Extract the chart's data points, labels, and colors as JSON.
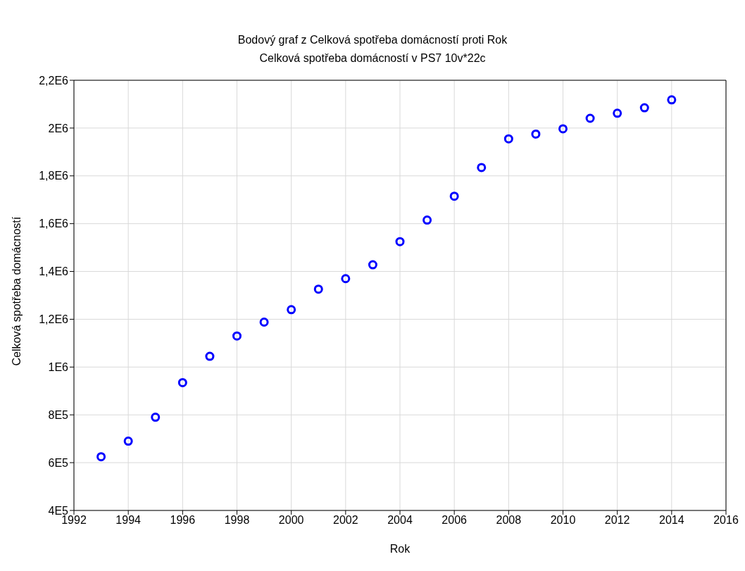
{
  "chart_data": {
    "type": "scatter",
    "title": "Bodový graf z Celková spotřeba domácností proti Rok",
    "subtitle": "Celková spotřeba domácností v PS7 10v*22c",
    "xlabel": "Rok",
    "ylabel": "Celková spotřeba domácností",
    "x": [
      1993,
      1994,
      1995,
      1996,
      1997,
      1998,
      1999,
      2000,
      2001,
      2002,
      2003,
      2004,
      2005,
      2006,
      2007,
      2008,
      2009,
      2010,
      2011,
      2012,
      2013,
      2014
    ],
    "series": [
      {
        "color": "#0000ff",
        "values": [
          625000,
          690000,
          790000,
          935000,
          1045000,
          1130000,
          1188000,
          1240000,
          1326000,
          1370000,
          1428000,
          1525000,
          1615000,
          1715000,
          1835000,
          1955000,
          1975000,
          1997000,
          2041000,
          2062000,
          2085000,
          2118000
        ]
      }
    ],
    "xlim": [
      1992,
      2016
    ],
    "xticks": [
      1992,
      1994,
      1996,
      1998,
      2000,
      2002,
      2004,
      2006,
      2008,
      2010,
      2012,
      2014,
      2016
    ],
    "ylim": [
      400000,
      2200000
    ],
    "yticks": [
      {
        "value": 400000,
        "label": "4E5"
      },
      {
        "value": 600000,
        "label": "6E5"
      },
      {
        "value": 800000,
        "label": "8E5"
      },
      {
        "value": 1000000,
        "label": "1E6"
      },
      {
        "value": 1200000,
        "label": "1,2E6"
      },
      {
        "value": 1400000,
        "label": "1,4E6"
      },
      {
        "value": 1600000,
        "label": "1,6E6"
      },
      {
        "value": 1800000,
        "label": "1,8E6"
      },
      {
        "value": 2000000,
        "label": "2E6"
      },
      {
        "value": 2200000,
        "label": "2,2E6"
      }
    ],
    "grid": true,
    "marker": "circle",
    "legend": false
  }
}
